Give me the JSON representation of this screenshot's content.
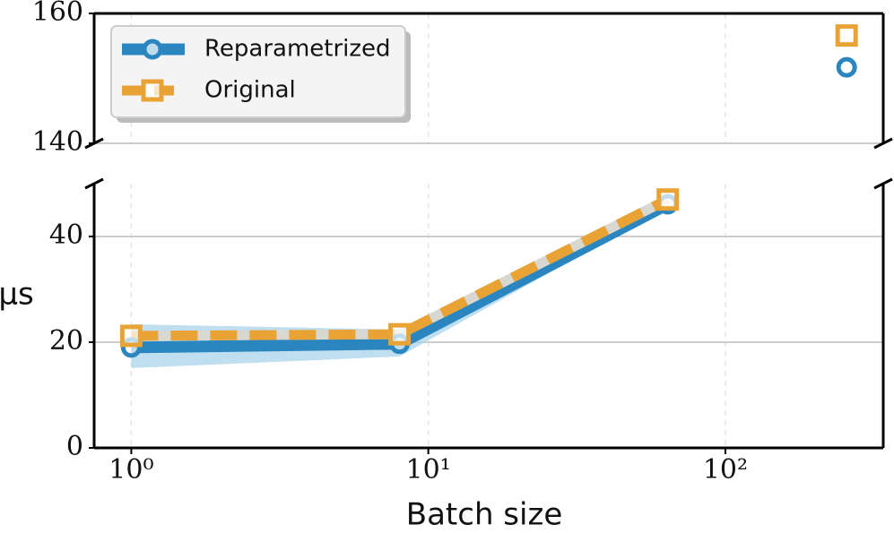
{
  "chart_data": {
    "type": "line",
    "x_label": "Batch size",
    "y_label": "μs",
    "x": [
      1,
      8,
      64,
      256
    ],
    "xlim": [
      0.75,
      340
    ],
    "xscale": "log",
    "xticks": [
      {
        "value": 1,
        "label": "10⁰"
      },
      {
        "value": 10,
        "label": "10¹"
      },
      {
        "value": 100,
        "label": "10²"
      }
    ],
    "panels": [
      {
        "ylim": [
          140,
          160
        ],
        "yticks": [
          140,
          160
        ]
      },
      {
        "ylim": [
          0,
          50
        ],
        "yticks": [
          0,
          20,
          40
        ]
      }
    ],
    "grid": true,
    "legend": "upper left",
    "series": [
      {
        "name": "Reparametrized",
        "color": "#2b86c0",
        "marker": "circle",
        "dash": false,
        "values": [
          19,
          19.7,
          46.1,
          151.7
        ],
        "lower": [
          15.1,
          17.3,
          45.6,
          null
        ],
        "upper": [
          23.4,
          22.4,
          46.6,
          null
        ],
        "band_color": "#a9d3ea"
      },
      {
        "name": "Original",
        "color": "#e8a334",
        "marker": "square",
        "dash": true,
        "values": [
          21.2,
          21.5,
          47,
          156.6
        ]
      }
    ]
  }
}
